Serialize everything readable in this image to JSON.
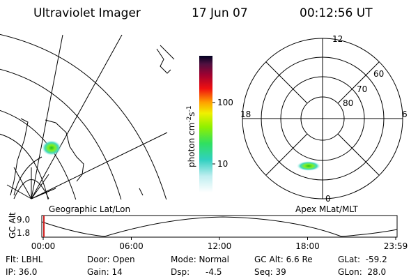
{
  "header": {
    "title": "Ultraviolet Imager",
    "date": "17 Jun 07",
    "time": "00:12:56 UT"
  },
  "colorbar": {
    "label": "photon cm",
    "exp1": "-2",
    "unit2": "s",
    "exp2": "-1",
    "ticks": [
      "100",
      "10"
    ]
  },
  "polar_plot": {
    "mlt_labels": [
      "12",
      "18",
      "6",
      "0"
    ],
    "lat_labels": [
      "60",
      "70",
      "80"
    ]
  },
  "captions": {
    "left": "Geographic Lat/Lon",
    "right": "Apex MLat/MLT"
  },
  "timeline": {
    "y_label": "GC Alt",
    "y_ticks": [
      "9.0",
      "1.8"
    ],
    "x_ticks": [
      "00:00",
      "06:00",
      "12:00",
      "18:00",
      "23:59"
    ]
  },
  "footer": {
    "items": [
      [
        "Flt: LBHL",
        "IP: 36.0"
      ],
      [
        "Door: Open",
        "Gain: 14"
      ],
      [
        "Mode: Normal",
        "Dsp:      -4.5"
      ],
      [
        "GC Alt: 6.6 Re",
        "Seq: 39"
      ],
      [
        "GLat:  -59.2",
        "GLon:  28.0"
      ]
    ]
  }
}
